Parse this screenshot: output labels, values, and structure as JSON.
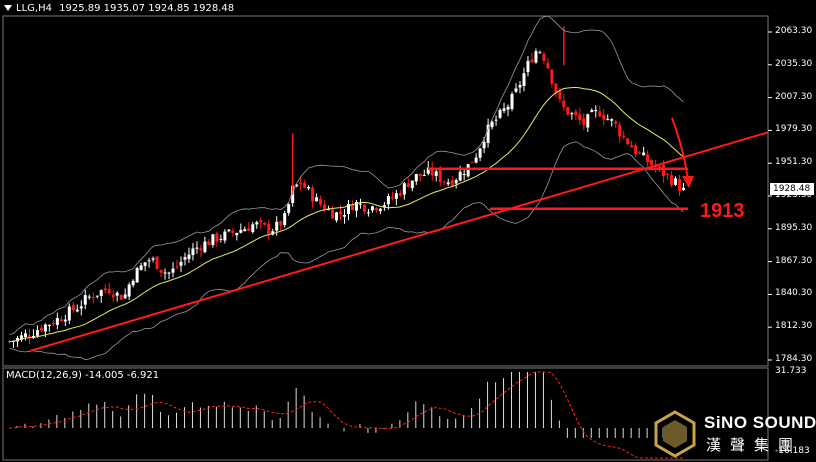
{
  "header": {
    "symbol": "LLG,H4",
    "ohlc": "1925.89 1935.07 1924.85 1928.48"
  },
  "price_axis": {
    "ticks": [
      "2063.30",
      "2035.30",
      "2007.30",
      "1979.30",
      "1951.30",
      "1923.30",
      "1895.30",
      "1867.30",
      "1840.30",
      "1812.30",
      "1784.30"
    ],
    "current_price": "1928.48"
  },
  "macd": {
    "label": "MACD(12,26,9) -14.005 -6.921",
    "ticks": [
      "31.733",
      "-16.183"
    ]
  },
  "annotation": {
    "level_label": "1913"
  },
  "logo": {
    "name": "SiNO SOUND",
    "chinese": "漢聲集團"
  },
  "colors": {
    "background": "#000000",
    "bull": "#ffffff",
    "bear": "#ff1a1a",
    "annotation": "#ff1a1a",
    "ma": "#e8e86a",
    "bands": "#9a9a9a",
    "macd_signal": "#ff2020"
  },
  "chart_data": {
    "type": "candlestick",
    "timeframe": "H4",
    "y_range": [
      1780,
      2070
    ],
    "close_path": [
      1800,
      1802,
      1805,
      1808,
      1812,
      1815,
      1818,
      1822,
      1826,
      1830,
      1836,
      1840,
      1843,
      1845,
      1840,
      1838,
      1855,
      1862,
      1870,
      1868,
      1860,
      1858,
      1865,
      1872,
      1878,
      1882,
      1885,
      1888,
      1890,
      1892,
      1895,
      1897,
      1900,
      1897,
      1895,
      1898,
      1905,
      1930,
      1935,
      1928,
      1920,
      1915,
      1910,
      1908,
      1912,
      1918,
      1916,
      1914,
      1916,
      1918,
      1922,
      1928,
      1935,
      1940,
      1942,
      1944,
      1940,
      1936,
      1938,
      1944,
      1950,
      1960,
      1975,
      1985,
      1992,
      2000,
      2010,
      2025,
      2040,
      2050,
      2040,
      2020,
      2000,
      1995,
      1990,
      1985,
      1992,
      1996,
      1990,
      1985,
      1975,
      1968,
      1960,
      1955,
      1950,
      1945,
      1940,
      1935,
      1928
    ],
    "macd_histogram_shape": "rises to peak ~31.7 then falls to negative",
    "annotations": [
      {
        "type": "trendline",
        "color": "red",
        "from_price": 1792,
        "to_price": 1978
      },
      {
        "type": "horizontal",
        "price": 1947
      },
      {
        "type": "horizontal",
        "price": 1913,
        "label": "1913"
      }
    ]
  }
}
